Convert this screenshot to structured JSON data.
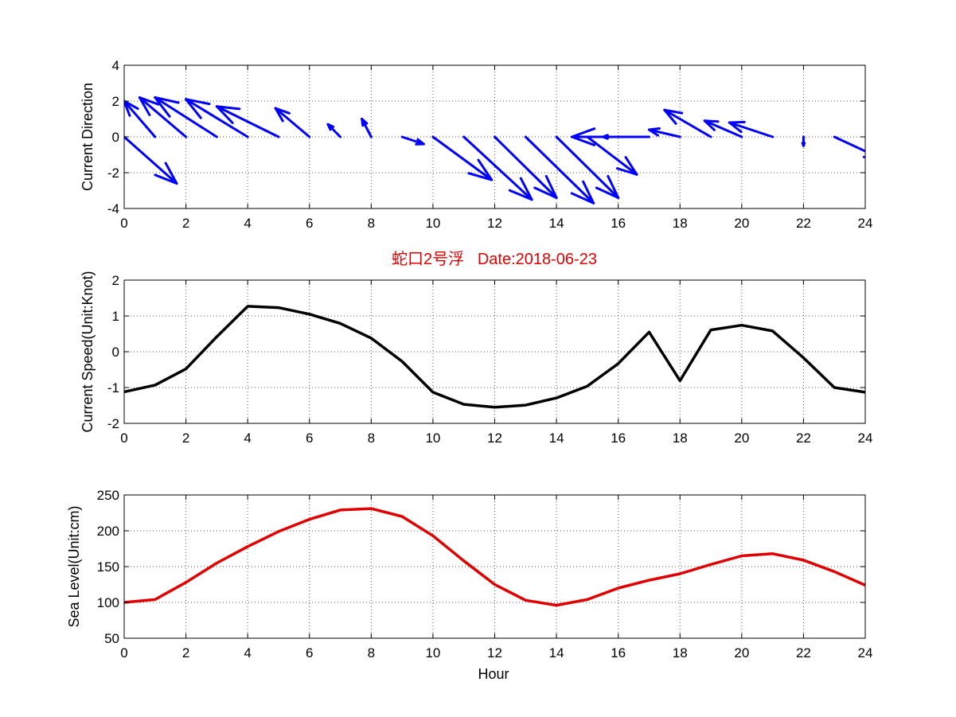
{
  "colors": {
    "direction": "#0000ff",
    "speed": "#000000",
    "sea_level": "#e00000",
    "title": "#e00000",
    "grid": "#555555"
  },
  "chart_data": [
    {
      "type": "quiver",
      "ylabel": "Current Direction",
      "xlim": [
        0,
        24
      ],
      "ylim": [
        -4,
        4
      ],
      "xticks": [
        "0",
        "2",
        "4",
        "6",
        "8",
        "10",
        "12",
        "14",
        "16",
        "18",
        "20",
        "22",
        "24"
      ],
      "yticks": [
        "4",
        "2",
        "0",
        "-2",
        "-4"
      ],
      "grid": true,
      "x": [
        0,
        1,
        2,
        3,
        4,
        5,
        6,
        7,
        8,
        9,
        10,
        11,
        12,
        13,
        14,
        15,
        16,
        17,
        18,
        19,
        20,
        21,
        22,
        23
      ],
      "u": [
        1.7,
        -1.0,
        -1.5,
        -2.0,
        -2.0,
        -2.0,
        -1.1,
        -0.4,
        -0.3,
        0.7,
        1.9,
        2.2,
        2.0,
        2.2,
        2.0,
        1.6,
        -0.5,
        -2.5,
        -1.0,
        -1.5,
        -1.2,
        -1.4,
        0.0,
        1.5
      ],
      "v": [
        -2.6,
        2.0,
        2.2,
        2.2,
        2.1,
        1.7,
        1.6,
        0.7,
        1.0,
        -0.4,
        -2.4,
        -3.5,
        -3.4,
        -3.7,
        -3.4,
        -2.1,
        0.0,
        0.0,
        0.4,
        1.5,
        0.9,
        0.8,
        -0.5,
        -1.2
      ]
    },
    {
      "type": "line",
      "title": "蛇口2号浮   Date:2018-06-23",
      "ylabel": "Current Speed(Unit:Knot)",
      "xlim": [
        0,
        24
      ],
      "ylim": [
        -2,
        2
      ],
      "xticks": [
        "0",
        "2",
        "4",
        "6",
        "8",
        "10",
        "12",
        "14",
        "16",
        "18",
        "20",
        "22",
        "24"
      ],
      "yticks": [
        "2",
        "1",
        "0",
        "-1",
        "-2"
      ],
      "grid": true,
      "x": [
        0,
        1,
        2,
        3,
        4,
        5,
        6,
        7,
        8,
        9,
        10,
        11,
        12,
        13,
        14,
        15,
        16,
        17,
        18,
        19,
        20,
        21,
        22,
        23,
        24
      ],
      "series": [
        {
          "values": [
            -1.12,
            -0.93,
            -0.48,
            0.42,
            1.27,
            1.23,
            1.05,
            0.79,
            0.38,
            -0.27,
            -1.13,
            -1.47,
            -1.55,
            -1.49,
            -1.29,
            -0.96,
            -0.33,
            0.55,
            -0.81,
            0.61,
            0.74,
            0.58,
            -0.17,
            -1.0,
            -1.13
          ]
        }
      ]
    },
    {
      "type": "line",
      "ylabel": "Sea Level(Unit:cm)",
      "xlabel": "Hour",
      "xlim": [
        0,
        24
      ],
      "ylim": [
        50,
        250
      ],
      "xticks": [
        "0",
        "2",
        "4",
        "6",
        "8",
        "10",
        "12",
        "14",
        "16",
        "18",
        "20",
        "22",
        "24"
      ],
      "yticks": [
        "250",
        "200",
        "150",
        "100",
        "50"
      ],
      "grid": true,
      "x": [
        0,
        1,
        2,
        3,
        4,
        5,
        6,
        7,
        8,
        9,
        10,
        11,
        12,
        13,
        14,
        15,
        16,
        17,
        18,
        19,
        20,
        21,
        22,
        23,
        24
      ],
      "series": [
        {
          "values": [
            100,
            104,
            128,
            155,
            178,
            199,
            216,
            229,
            231,
            220,
            193,
            158,
            125,
            103,
            96,
            104,
            120,
            131,
            140,
            153,
            165,
            168,
            159,
            143,
            124
          ]
        }
      ]
    }
  ]
}
